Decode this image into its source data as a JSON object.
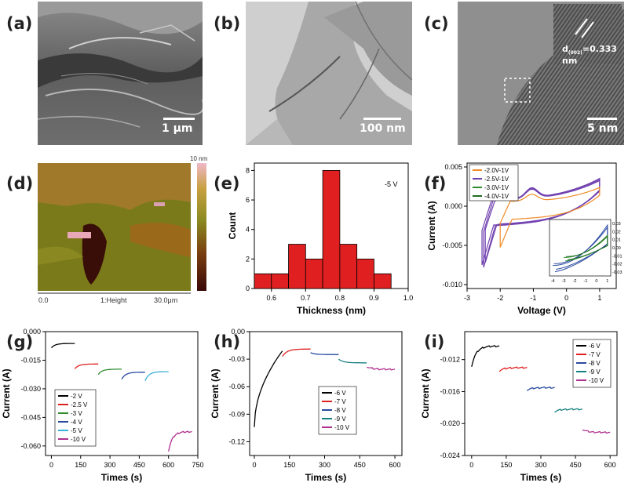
{
  "panel_labels": {
    "a": "(a)",
    "b": "(b)",
    "c": "(c)",
    "d": "(d)",
    "e": "(e)",
    "f": "(f)",
    "g": "(g)",
    "h": "(h)",
    "i": "(i)"
  },
  "micrographs": {
    "a": {
      "scale_bar": "1 μm"
    },
    "b": {
      "scale_bar": "100 nm"
    },
    "c": {
      "scale_bar": "5 nm",
      "lattice_label": "d",
      "lattice_sub": "(002)",
      "lattice_value": "=0.333 nm"
    }
  },
  "afm": {
    "colorbar_top": "10 nm",
    "axis_left": "0.0",
    "axis_mid": "1:Height",
    "axis_right": "30.0μm"
  },
  "colors": {
    "red": "#e02020",
    "orange": "#f08a24",
    "purple": "#7040b0",
    "green": "#2e8b2e",
    "darkgreen": "#1f6e1f",
    "blue": "#2a4aa0",
    "teal": "#168080",
    "cyan": "#3ab0d8",
    "magenta": "#b03090",
    "black": "#000000"
  },
  "chart_data": [
    {
      "id": "e",
      "type": "bar",
      "xlabel": "Thickness (nm)",
      "ylabel": "Count",
      "annotation": "-5 V",
      "xlim": [
        0.55,
        1.0
      ],
      "ylim": [
        0,
        8.5
      ],
      "xticks": [
        "0.6",
        "0.7",
        "0.8",
        "0.9",
        "1.0"
      ],
      "yticks": [
        "0",
        "2",
        "4",
        "6",
        "8"
      ],
      "bins": [
        0.575,
        0.625,
        0.675,
        0.725,
        0.775,
        0.825,
        0.875,
        0.925
      ],
      "values": [
        1,
        1,
        3,
        2,
        8,
        3,
        2,
        1
      ],
      "bin_width": 0.05
    },
    {
      "id": "f",
      "type": "line",
      "xlabel": "Voltage (V)",
      "ylabel": "Current (A)",
      "xlim": [
        -3,
        1.5
      ],
      "ylim": [
        -0.0105,
        0.0055
      ],
      "xticks": [
        "-3",
        "-2",
        "-1",
        "0",
        "1"
      ],
      "yticks": [
        "0.005",
        "0.000",
        "-0.005",
        "-0.010"
      ],
      "legend": [
        "-2.0V-1V",
        "-2.5V-1V",
        "-3.0V-1V",
        "-4.0V-1V"
      ],
      "inset": {
        "xticks": [
          "-4",
          "-3",
          "-2",
          "-1",
          "0",
          "1"
        ],
        "yticks": [
          "0.03",
          "0.02",
          "0.01",
          "0.00",
          "-0.01",
          "-0.02",
          "-0.03"
        ],
        "xlim": [
          -4.3,
          1.3
        ],
        "ylim": [
          -0.035,
          0.035
        ]
      }
    },
    {
      "id": "g",
      "type": "line",
      "xlabel": "Times (s)",
      "ylabel": "Current (A)",
      "xlim": [
        -30,
        750
      ],
      "ylim": [
        -0.065,
        0.0
      ],
      "xticks": [
        "0",
        "150",
        "300",
        "450",
        "600",
        "750"
      ],
      "yticks": [
        "0.000",
        "-0.015",
        "-0.030",
        "-0.045",
        "-0.060"
      ],
      "series": [
        {
          "name": "-2 V",
          "x": [
            0,
            120
          ],
          "y0": -0.0085,
          "y1": -0.0062
        },
        {
          "name": "-2.5 V",
          "x": [
            120,
            240
          ],
          "y0": -0.0195,
          "y1": -0.017
        },
        {
          "name": "-3 V",
          "x": [
            240,
            360
          ],
          "y0": -0.0225,
          "y1": -0.0197
        },
        {
          "name": "-4 V",
          "x": [
            360,
            480
          ],
          "y0": -0.025,
          "y1": -0.0213
        },
        {
          "name": "-5 V",
          "x": [
            480,
            600
          ],
          "y0": -0.0258,
          "y1": -0.021
        },
        {
          "name": "-10 V",
          "x": [
            600,
            720
          ],
          "y0": -0.0625,
          "y1": -0.0525
        }
      ]
    },
    {
      "id": "h",
      "type": "line",
      "xlabel": "Times (s)",
      "ylabel": "Current (A)",
      "xlim": [
        -20,
        630
      ],
      "ylim": [
        -0.135,
        0.0
      ],
      "xticks": [
        "0",
        "150",
        "300",
        "450",
        "600"
      ],
      "yticks": [
        "0.00",
        "-0.03",
        "-0.06",
        "-0.09",
        "-0.12"
      ],
      "series": [
        {
          "name": "-6 V",
          "x": [
            0,
            120
          ],
          "y0": -0.104,
          "y1": -0.021
        },
        {
          "name": "-7 V",
          "x": [
            120,
            240
          ],
          "y0": -0.027,
          "y1": -0.019
        },
        {
          "name": "-8 V",
          "x": [
            240,
            360
          ],
          "y0": -0.023,
          "y1": -0.025
        },
        {
          "name": "-9 V",
          "x": [
            360,
            480
          ],
          "y0": -0.03,
          "y1": -0.034
        },
        {
          "name": "-10 V",
          "x": [
            480,
            600
          ],
          "y0": -0.038,
          "y1": -0.041
        }
      ]
    },
    {
      "id": "i",
      "type": "line",
      "xlabel": "Times (s)",
      "ylabel": "Current (A)",
      "xlim": [
        -30,
        630
      ],
      "ylim": [
        -0.024,
        -0.0085
      ],
      "xticks": [
        "0",
        "150",
        "300",
        "450",
        "600"
      ],
      "yticks": [
        "-0.012",
        "-0.016",
        "-0.020",
        "-0.024"
      ],
      "series": [
        {
          "name": "-6 V",
          "x": [
            0,
            120
          ],
          "y0": -0.0128,
          "y1": -0.0103
        },
        {
          "name": "-7 V",
          "x": [
            120,
            240
          ],
          "y0": -0.0134,
          "y1": -0.013
        },
        {
          "name": "-8 V",
          "x": [
            240,
            360
          ],
          "y0": -0.0158,
          "y1": -0.0155
        },
        {
          "name": "-9 V",
          "x": [
            360,
            480
          ],
          "y0": -0.0185,
          "y1": -0.0182
        },
        {
          "name": "-10 V",
          "x": [
            480,
            600
          ],
          "y0": -0.0207,
          "y1": -0.0211
        }
      ]
    }
  ]
}
